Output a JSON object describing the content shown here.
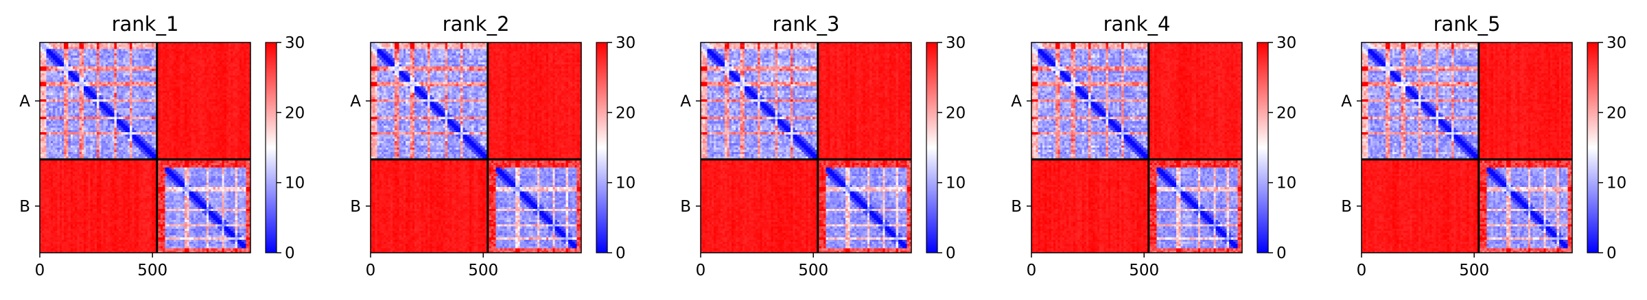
{
  "chart_data": [
    {
      "type": "heatmap",
      "title": "rank_1",
      "colormap": "bwr",
      "vmin": 0,
      "vmax": 30,
      "colorbar_ticks": [
        "0",
        "10",
        "20",
        "30"
      ],
      "x_ticks": [
        "0",
        "500"
      ],
      "x_tick_values": [
        0,
        500
      ],
      "x_range": [
        0,
        935
      ],
      "chain_boundary": 520,
      "y_tick_labels": [
        "A",
        "B"
      ],
      "chains": [
        {
          "name": "A",
          "length": 520
        },
        {
          "name": "B",
          "length": 415
        }
      ]
    },
    {
      "type": "heatmap",
      "title": "rank_2",
      "colormap": "bwr",
      "vmin": 0,
      "vmax": 30,
      "colorbar_ticks": [
        "0",
        "10",
        "20",
        "30"
      ],
      "x_ticks": [
        "0",
        "500"
      ],
      "x_tick_values": [
        0,
        500
      ],
      "x_range": [
        0,
        935
      ],
      "chain_boundary": 520,
      "y_tick_labels": [
        "A",
        "B"
      ],
      "chains": [
        {
          "name": "A",
          "length": 520
        },
        {
          "name": "B",
          "length": 415
        }
      ]
    },
    {
      "type": "heatmap",
      "title": "rank_3",
      "colormap": "bwr",
      "vmin": 0,
      "vmax": 30,
      "colorbar_ticks": [
        "0",
        "10",
        "20",
        "30"
      ],
      "x_ticks": [
        "0",
        "500"
      ],
      "x_tick_values": [
        0,
        500
      ],
      "x_range": [
        0,
        935
      ],
      "chain_boundary": 520,
      "y_tick_labels": [
        "A",
        "B"
      ],
      "chains": [
        {
          "name": "A",
          "length": 520
        },
        {
          "name": "B",
          "length": 415
        }
      ]
    },
    {
      "type": "heatmap",
      "title": "rank_4",
      "colormap": "bwr",
      "vmin": 0,
      "vmax": 30,
      "colorbar_ticks": [
        "0",
        "10",
        "20",
        "30"
      ],
      "x_ticks": [
        "0",
        "500"
      ],
      "x_tick_values": [
        0,
        500
      ],
      "x_range": [
        0,
        935
      ],
      "chain_boundary": 520,
      "y_tick_labels": [
        "A",
        "B"
      ],
      "chains": [
        {
          "name": "A",
          "length": 520
        },
        {
          "name": "B",
          "length": 415
        }
      ]
    },
    {
      "type": "heatmap",
      "title": "rank_5",
      "colormap": "bwr",
      "vmin": 0,
      "vmax": 30,
      "colorbar_ticks": [
        "0",
        "10",
        "20",
        "30"
      ],
      "x_ticks": [
        "0",
        "500"
      ],
      "x_tick_values": [
        0,
        500
      ],
      "x_range": [
        0,
        935
      ],
      "chain_boundary": 520,
      "y_tick_labels": [
        "A",
        "B"
      ],
      "chains": [
        {
          "name": "A",
          "length": 520
        },
        {
          "name": "B",
          "length": 415
        }
      ]
    }
  ],
  "colors": {
    "low": "#0000ff",
    "mid": "#ffffff",
    "high": "#ff0000",
    "boundary": "#000000"
  }
}
